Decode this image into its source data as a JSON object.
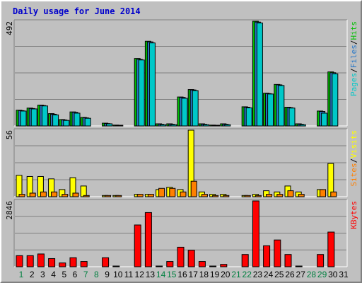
{
  "title": "Daily usage for June 2014",
  "colors": {
    "title": "#0000cc",
    "pages": "#00c8c8",
    "files": "#2878c8",
    "hits": "#00c000",
    "sites": "#ff8000",
    "visits": "#ffff00",
    "kbytes": "#ff0000",
    "weekday": "#000000",
    "weekend": "#008040"
  },
  "chart_data": [
    {
      "type": "bar",
      "name": "hits-files-pages",
      "y_max_label": "492",
      "ylim": [
        0,
        492
      ],
      "legend": [
        {
          "text": "Pages",
          "color": "pages"
        },
        {
          "text": "/",
          "color": "slash"
        },
        {
          "text": "Files",
          "color": "files"
        },
        {
          "text": "/",
          "color": "slash"
        },
        {
          "text": "Hits",
          "color": "hits"
        }
      ],
      "series": [
        {
          "name": "Hits",
          "color": "#00c000",
          "values": [
            74,
            84,
            98,
            58,
            30,
            66,
            40,
            0,
            13,
            4,
            0,
            317,
            398,
            10,
            10,
            136,
            171,
            10,
            4,
            10,
            0,
            90,
            492,
            154,
            195,
            88,
            10,
            0,
            70,
            254,
            0
          ]
        },
        {
          "name": "Files",
          "color": "#2878c8",
          "values": [
            72,
            82,
            96,
            55,
            28,
            64,
            38,
            0,
            11,
            2,
            0,
            313,
            395,
            8,
            8,
            134,
            169,
            8,
            2,
            8,
            0,
            88,
            488,
            152,
            193,
            86,
            8,
            0,
            68,
            250,
            0
          ]
        },
        {
          "name": "Pages",
          "color": "#00c8c8",
          "values": [
            70,
            80,
            94,
            52,
            26,
            60,
            36,
            0,
            10,
            1,
            0,
            310,
            390,
            6,
            6,
            130,
            166,
            6,
            1,
            6,
            0,
            85,
            484,
            150,
            190,
            84,
            6,
            0,
            60,
            245,
            0
          ]
        }
      ]
    },
    {
      "type": "bar",
      "name": "visits-sites",
      "y_max_label": "56",
      "ylim": [
        0,
        56
      ],
      "legend": [
        {
          "text": "Sites",
          "color": "sites"
        },
        {
          "text": "/",
          "color": "slash"
        },
        {
          "text": "Visits",
          "color": "visits"
        }
      ],
      "series": [
        {
          "name": "Visits",
          "color": "#ffff00",
          "values": [
            18,
            17,
            17,
            15,
            6,
            16,
            9,
            0,
            1,
            1,
            0,
            2,
            2,
            6,
            8,
            6,
            56,
            4,
            2,
            2,
            0,
            1,
            2,
            5,
            4,
            9,
            4,
            0,
            6,
            28,
            0
          ]
        },
        {
          "name": "Sites",
          "color": "#ff8000",
          "values": [
            2,
            3,
            4,
            4,
            2,
            3,
            1,
            0,
            1,
            1,
            0,
            2,
            2,
            7,
            7,
            4,
            13,
            2,
            1,
            1,
            0,
            1,
            1,
            2,
            2,
            5,
            2,
            0,
            6,
            4,
            0
          ]
        }
      ]
    },
    {
      "type": "bar",
      "name": "kbytes",
      "y_max_label": "2846",
      "ylim": [
        0,
        2846
      ],
      "legend": [
        {
          "text": "KBytes",
          "color": "kbytes"
        }
      ],
      "series": [
        {
          "name": "KBytes",
          "color": "#ff0000",
          "values": [
            479,
            479,
            552,
            353,
            164,
            390,
            227,
            0,
            390,
            25,
            0,
            1806,
            2344,
            25,
            227,
            844,
            713,
            227,
            25,
            101,
            0,
            529,
            2846,
            907,
            1158,
            529,
            25,
            0,
            529,
            1499,
            0
          ]
        }
      ]
    }
  ],
  "days": [
    "1",
    "2",
    "3",
    "4",
    "5",
    "6",
    "7",
    "8",
    "9",
    "10",
    "11",
    "12",
    "13",
    "14",
    "15",
    "16",
    "17",
    "18",
    "19",
    "20",
    "21",
    "22",
    "23",
    "24",
    "25",
    "26",
    "27",
    "28",
    "29",
    "30",
    "31"
  ],
  "weekend_days": [
    1,
    7,
    8,
    14,
    15,
    21,
    22,
    28,
    29
  ]
}
